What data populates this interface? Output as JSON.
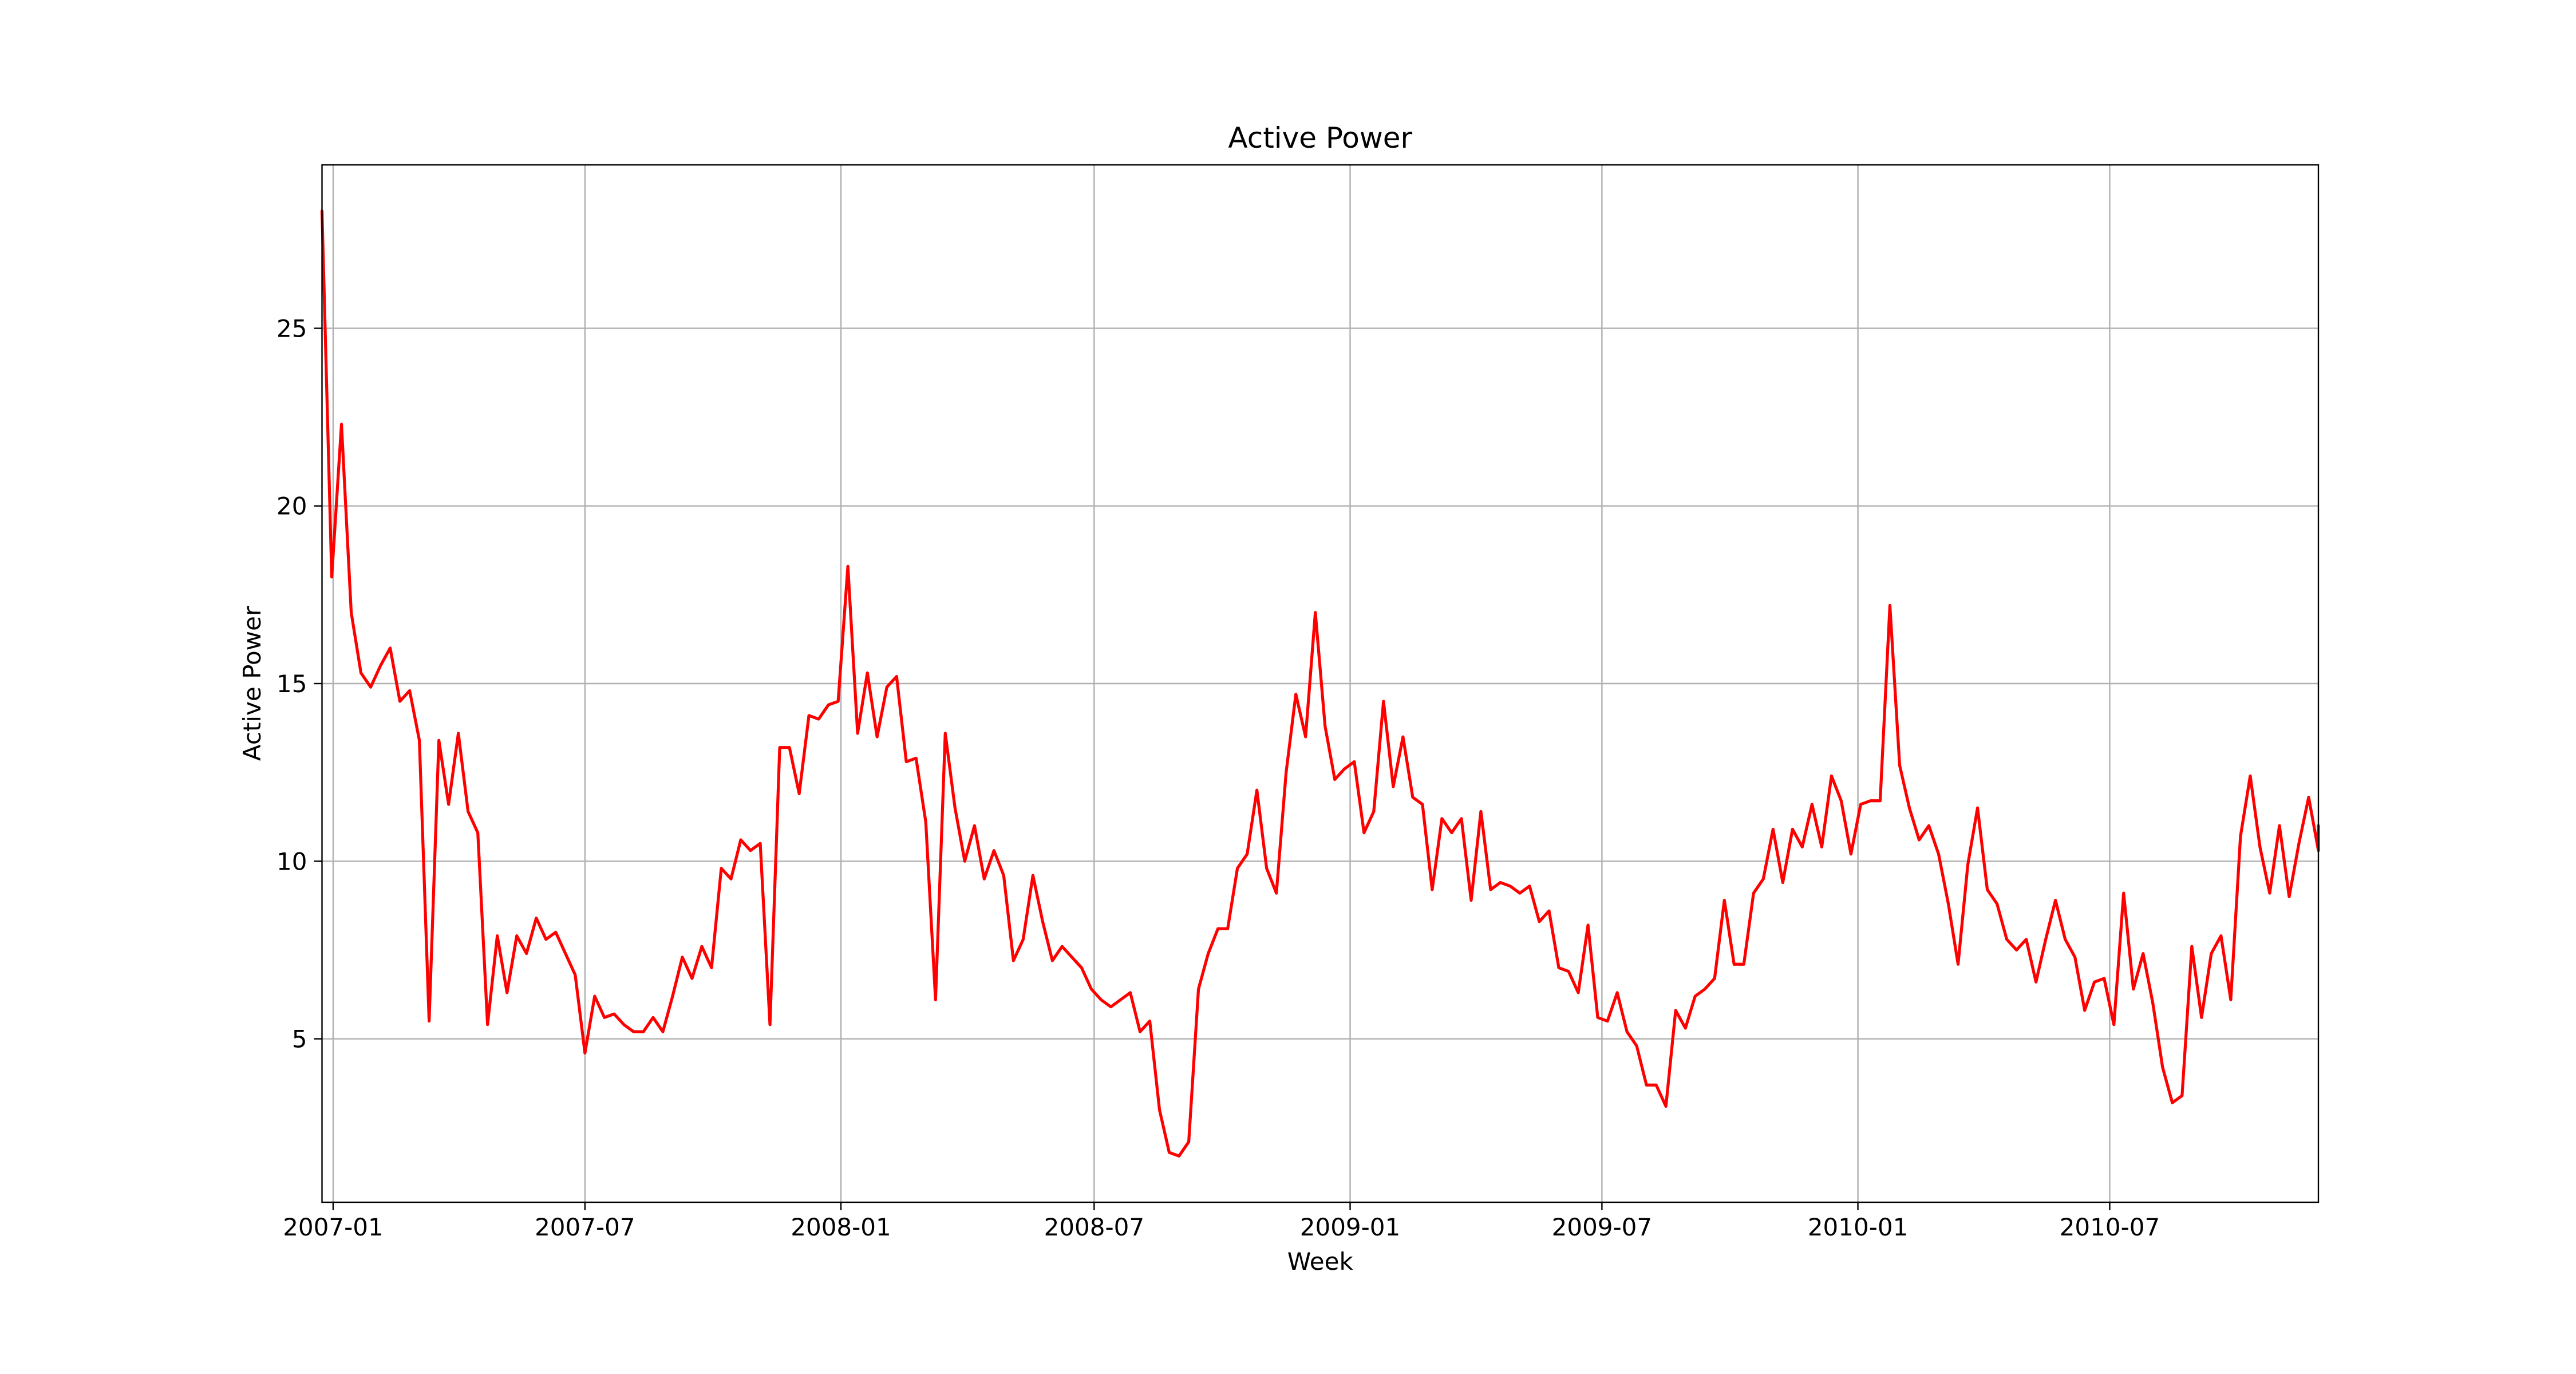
{
  "chart_data": {
    "type": "line",
    "title": "Active Power",
    "xlabel": "Week",
    "ylabel": "Active Power",
    "xlim": [
      "2006-12-24",
      "2010-11-28"
    ],
    "ylim": [
      0.4,
      29.6
    ],
    "x_ticks": [
      "2007-01-01",
      "2007-07-01",
      "2008-01-01",
      "2008-07-01",
      "2009-01-01",
      "2009-07-01",
      "2010-01-01",
      "2010-07-01"
    ],
    "x_tick_labels": [
      "2007-01",
      "2007-07",
      "2008-01",
      "2008-07",
      "2009-01",
      "2009-07",
      "2010-01",
      "2010-07"
    ],
    "y_ticks": [
      5,
      10,
      15,
      20,
      25
    ],
    "y_tick_labels": [
      "5",
      "10",
      "15",
      "20",
      "25"
    ],
    "grid": true,
    "line_color": "#ff0000",
    "x_start": "2006-12-24",
    "x_step_days": 7,
    "values": [
      28.3,
      18.0,
      22.3,
      17.0,
      15.3,
      14.9,
      15.5,
      16.0,
      14.5,
      14.8,
      13.4,
      5.5,
      13.4,
      11.6,
      13.6,
      11.4,
      10.8,
      5.4,
      7.9,
      6.3,
      7.9,
      7.4,
      8.4,
      7.8,
      8.0,
      7.4,
      6.8,
      4.6,
      6.2,
      5.6,
      5.7,
      5.4,
      5.2,
      5.2,
      5.6,
      5.2,
      6.2,
      7.3,
      6.7,
      7.6,
      7.0,
      9.8,
      9.5,
      10.6,
      10.3,
      10.5,
      5.4,
      13.2,
      13.2,
      11.9,
      14.1,
      14.0,
      14.4,
      14.5,
      18.3,
      13.6,
      15.3,
      13.5,
      14.9,
      15.2,
      12.8,
      12.9,
      11.1,
      6.1,
      13.6,
      11.5,
      10.0,
      11.0,
      9.5,
      10.3,
      9.6,
      7.2,
      7.8,
      9.6,
      8.3,
      7.2,
      7.6,
      7.3,
      7.0,
      6.4,
      6.1,
      5.9,
      6.1,
      6.3,
      5.2,
      5.5,
      3.0,
      1.8,
      1.7,
      2.1,
      6.4,
      7.4,
      8.1,
      8.1,
      9.8,
      10.2,
      12.0,
      9.8,
      9.1,
      12.5,
      14.7,
      13.5,
      17.0,
      13.8,
      12.3,
      12.6,
      12.8,
      10.8,
      11.4,
      14.5,
      12.1,
      13.5,
      11.8,
      11.6,
      9.2,
      11.2,
      10.8,
      11.2,
      8.9,
      11.4,
      9.2,
      9.4,
      9.3,
      9.1,
      9.3,
      8.3,
      8.6,
      7.0,
      6.9,
      6.3,
      8.2,
      5.6,
      5.5,
      6.3,
      5.2,
      4.8,
      3.7,
      3.7,
      3.1,
      5.8,
      5.3,
      6.2,
      6.4,
      6.7,
      8.9,
      7.1,
      7.1,
      9.1,
      9.5,
      10.9,
      9.4,
      10.9,
      10.4,
      11.6,
      10.4,
      12.4,
      11.7,
      10.2,
      11.6,
      11.7,
      11.7,
      17.2,
      12.7,
      11.5,
      10.6,
      11.0,
      10.2,
      8.8,
      7.1,
      9.9,
      11.5,
      9.2,
      8.8,
      7.8,
      7.5,
      7.8,
      6.6,
      7.8,
      8.9,
      7.8,
      7.3,
      5.8,
      6.6,
      6.7,
      5.4,
      9.1,
      6.4,
      7.4,
      6.0,
      4.2,
      3.2,
      3.4,
      7.6,
      5.6,
      7.4,
      7.9,
      6.1,
      10.7,
      12.4,
      10.4,
      9.1,
      11.0,
      9.0,
      10.5,
      11.8,
      10.3,
      11.0
    ]
  }
}
